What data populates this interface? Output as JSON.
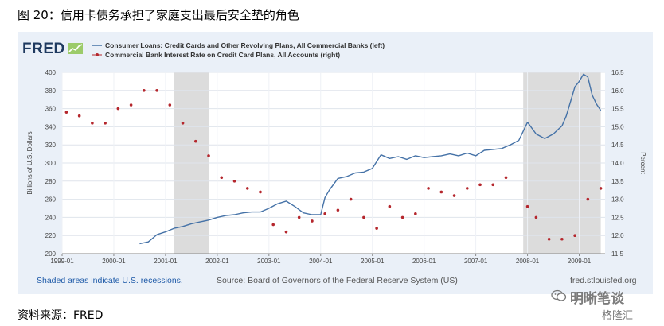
{
  "header": {
    "title": "图 20：信用卡债务承担了家庭支出最后安全垫的角色"
  },
  "fred": {
    "logo": "FRED",
    "footer_left": "Shaded areas indicate U.S. recessions.",
    "footer_mid": "Source: Board of Governors of the Federal Reserve System (US)",
    "footer_right": "fred.stlouisfed.org"
  },
  "source": "资料来源：FRED",
  "watermark": {
    "text": "明晰笔谈",
    "sub": "格隆汇"
  },
  "colors": {
    "line": "#4572a7",
    "dots": "#b5272d",
    "recession": "#dcdcdc",
    "panel": "#eaf0f8",
    "plot": "#ffffff",
    "rule": "#b03030"
  },
  "chart_data": {
    "type": "line",
    "title": "",
    "xlabel": "",
    "ylabel": "Billions of U.S. Dollars",
    "ylabel_right": "Percent",
    "x_ticks": [
      "1999-01",
      "2000-01",
      "2001-01",
      "2002-01",
      "2003-01",
      "2004-01",
      "2005-01",
      "2006-01",
      "2007-01",
      "2008-01",
      "2009-01"
    ],
    "x_range": [
      "1999-01",
      "2009-07"
    ],
    "ylim": [
      200,
      400
    ],
    "y_ticks": [
      200,
      220,
      240,
      260,
      280,
      300,
      320,
      340,
      360,
      380,
      400
    ],
    "ylim_right": [
      11.5,
      16.5
    ],
    "y_ticks_right": [
      "11.5",
      "12.0",
      "12.5",
      "13.0",
      "13.5",
      "14.0",
      "14.5",
      "15.0",
      "15.5",
      "16.0",
      "16.5"
    ],
    "grid": true,
    "legend": "top-left",
    "recessions": [
      [
        "2001-03",
        "2001-11"
      ],
      [
        "2007-12",
        "2009-06"
      ]
    ],
    "series": [
      {
        "name": "Consumer Loans: Credit Cards and Other Revolving Plans, All Commercial Banks (left)",
        "kind": "line",
        "axis": "left",
        "points": [
          [
            "2000-07",
            211
          ],
          [
            "2000-09",
            213
          ],
          [
            "2000-11",
            221
          ],
          [
            "2001-01",
            224
          ],
          [
            "2001-03",
            228
          ],
          [
            "2001-05",
            230
          ],
          [
            "2001-07",
            233
          ],
          [
            "2001-09",
            235
          ],
          [
            "2001-11",
            237
          ],
          [
            "2002-01",
            240
          ],
          [
            "2002-03",
            242
          ],
          [
            "2002-05",
            243
          ],
          [
            "2002-07",
            245
          ],
          [
            "2002-09",
            246
          ],
          [
            "2002-11",
            246
          ],
          [
            "2003-01",
            250
          ],
          [
            "2003-03",
            255
          ],
          [
            "2003-05",
            258
          ],
          [
            "2003-07",
            252
          ],
          [
            "2003-09",
            245
          ],
          [
            "2003-11",
            243
          ],
          [
            "2004-01",
            243
          ],
          [
            "2004-02",
            262
          ],
          [
            "2004-03",
            270
          ],
          [
            "2004-05",
            283
          ],
          [
            "2004-07",
            285
          ],
          [
            "2004-09",
            289
          ],
          [
            "2004-11",
            290
          ],
          [
            "2005-01",
            294
          ],
          [
            "2005-03",
            309
          ],
          [
            "2005-05",
            305
          ],
          [
            "2005-07",
            307
          ],
          [
            "2005-09",
            304
          ],
          [
            "2005-11",
            308
          ],
          [
            "2006-01",
            306
          ],
          [
            "2006-03",
            307
          ],
          [
            "2006-05",
            308
          ],
          [
            "2006-07",
            310
          ],
          [
            "2006-09",
            308
          ],
          [
            "2006-11",
            311
          ],
          [
            "2007-01",
            308
          ],
          [
            "2007-03",
            314
          ],
          [
            "2007-05",
            315
          ],
          [
            "2007-07",
            316
          ],
          [
            "2007-09",
            320
          ],
          [
            "2007-11",
            325
          ],
          [
            "2008-01",
            345
          ],
          [
            "2008-03",
            332
          ],
          [
            "2008-05",
            327
          ],
          [
            "2008-07",
            332
          ],
          [
            "2008-09",
            341
          ],
          [
            "2008-10",
            352
          ],
          [
            "2008-11",
            368
          ],
          [
            "2008-12",
            384
          ],
          [
            "2009-01",
            390
          ],
          [
            "2009-02",
            398
          ],
          [
            "2009-03",
            395
          ],
          [
            "2009-04",
            375
          ],
          [
            "2009-05",
            365
          ],
          [
            "2009-06",
            358
          ]
        ]
      },
      {
        "name": "Commercial Bank Interest Rate on Credit Card Plans, All Accounts (right)",
        "kind": "dots",
        "axis": "right",
        "points": [
          [
            "1999-02",
            15.4
          ],
          [
            "1999-05",
            15.3
          ],
          [
            "1999-08",
            15.1
          ],
          [
            "1999-11",
            15.1
          ],
          [
            "2000-02",
            15.5
          ],
          [
            "2000-05",
            15.6
          ],
          [
            "2000-08",
            16.0
          ],
          [
            "2000-11",
            16.0
          ],
          [
            "2001-02",
            15.6
          ],
          [
            "2001-05",
            15.1
          ],
          [
            "2001-08",
            14.6
          ],
          [
            "2001-11",
            14.2
          ],
          [
            "2002-02",
            13.6
          ],
          [
            "2002-05",
            13.5
          ],
          [
            "2002-08",
            13.3
          ],
          [
            "2002-11",
            13.2
          ],
          [
            "2003-02",
            12.3
          ],
          [
            "2003-05",
            12.1
          ],
          [
            "2003-08",
            12.5
          ],
          [
            "2003-11",
            12.4
          ],
          [
            "2004-02",
            12.6
          ],
          [
            "2004-05",
            12.7
          ],
          [
            "2004-08",
            13.0
          ],
          [
            "2004-11",
            12.5
          ],
          [
            "2005-02",
            12.2
          ],
          [
            "2005-05",
            12.8
          ],
          [
            "2005-08",
            12.5
          ],
          [
            "2005-11",
            12.6
          ],
          [
            "2006-02",
            13.3
          ],
          [
            "2006-05",
            13.2
          ],
          [
            "2006-08",
            13.1
          ],
          [
            "2006-11",
            13.3
          ],
          [
            "2007-02",
            13.4
          ],
          [
            "2007-05",
            13.4
          ],
          [
            "2007-08",
            13.6
          ],
          [
            "2008-01",
            12.8
          ],
          [
            "2008-03",
            12.5
          ],
          [
            "2008-06",
            11.9
          ],
          [
            "2008-09",
            11.9
          ],
          [
            "2008-12",
            12.0
          ],
          [
            "2009-03",
            13.0
          ],
          [
            "2009-06",
            13.3
          ]
        ]
      }
    ]
  }
}
